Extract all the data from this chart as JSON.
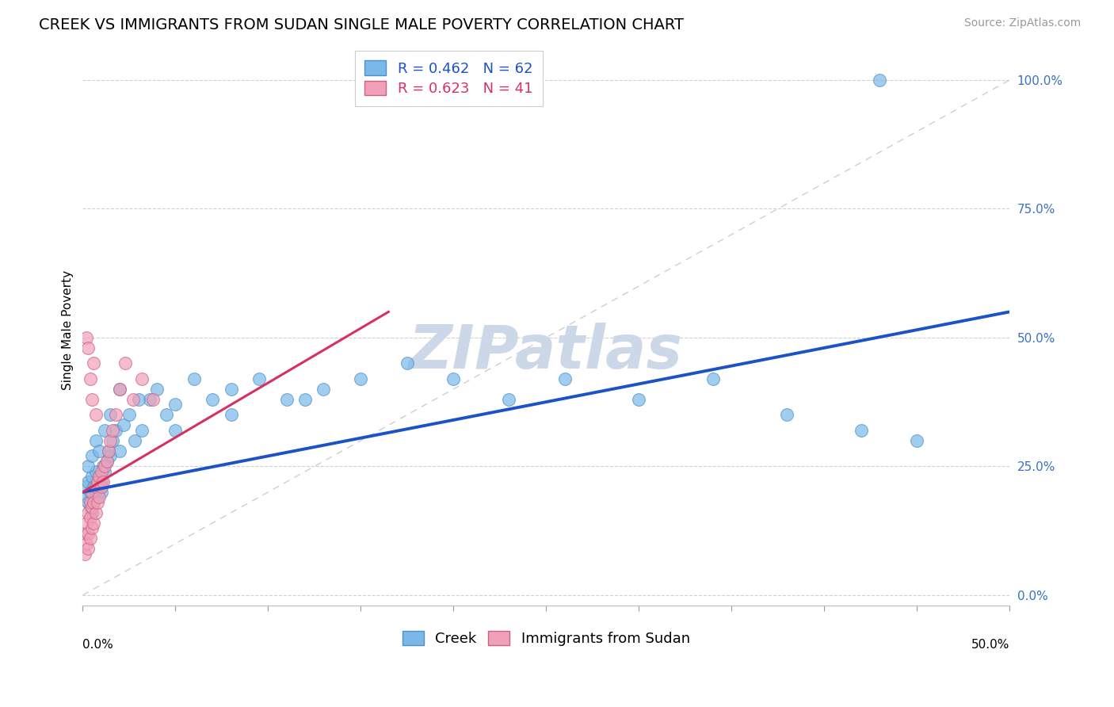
{
  "title": "CREEK VS IMMIGRANTS FROM SUDAN SINGLE MALE POVERTY CORRELATION CHART",
  "source_text": "Source: ZipAtlas.com",
  "ylabel": "Single Male Poverty",
  "watermark": "ZIPatlas",
  "watermark_color": "#ccd8e8",
  "creek_color": "#7ab8e8",
  "creek_edge": "#5090c8",
  "sudan_color": "#f0a0b8",
  "sudan_edge": "#d06080",
  "blue_line_color": "#1a52c8",
  "pink_line_color": "#d83060",
  "diag_line_color": "#c8c8d0",
  "background_color": "#ffffff",
  "legend_label_creek": "R = 0.462   N = 62",
  "legend_label_sudan": "R = 0.623   N = 41",
  "legend_color_creek": "#1a52c8",
  "legend_color_sudan": "#d83060",
  "creek_x": [
    0.001,
    0.002,
    0.003,
    0.003,
    0.004,
    0.004,
    0.005,
    0.005,
    0.006,
    0.006,
    0.007,
    0.007,
    0.008,
    0.008,
    0.009,
    0.009,
    0.01,
    0.01,
    0.011,
    0.012,
    0.013,
    0.014,
    0.015,
    0.016,
    0.018,
    0.02,
    0.022,
    0.025,
    0.028,
    0.032,
    0.036,
    0.04,
    0.045,
    0.05,
    0.06,
    0.07,
    0.08,
    0.095,
    0.11,
    0.13,
    0.15,
    0.175,
    0.2,
    0.23,
    0.26,
    0.3,
    0.34,
    0.38,
    0.42,
    0.45,
    0.003,
    0.005,
    0.007,
    0.009,
    0.012,
    0.015,
    0.02,
    0.03,
    0.05,
    0.08,
    0.12,
    0.43
  ],
  "creek_y": [
    0.21,
    0.19,
    0.18,
    0.22,
    0.2,
    0.17,
    0.16,
    0.23,
    0.21,
    0.18,
    0.24,
    0.2,
    0.22,
    0.19,
    0.21,
    0.23,
    0.22,
    0.2,
    0.25,
    0.24,
    0.26,
    0.28,
    0.27,
    0.3,
    0.32,
    0.28,
    0.33,
    0.35,
    0.3,
    0.32,
    0.38,
    0.4,
    0.35,
    0.37,
    0.42,
    0.38,
    0.4,
    0.42,
    0.38,
    0.4,
    0.42,
    0.45,
    0.42,
    0.38,
    0.42,
    0.38,
    0.42,
    0.35,
    0.32,
    0.3,
    0.25,
    0.27,
    0.3,
    0.28,
    0.32,
    0.35,
    0.4,
    0.38,
    0.32,
    0.35,
    0.38,
    1.0
  ],
  "sudan_x": [
    0.001,
    0.001,
    0.002,
    0.002,
    0.003,
    0.003,
    0.003,
    0.004,
    0.004,
    0.004,
    0.005,
    0.005,
    0.005,
    0.006,
    0.006,
    0.007,
    0.007,
    0.008,
    0.008,
    0.009,
    0.009,
    0.01,
    0.01,
    0.011,
    0.012,
    0.013,
    0.014,
    0.015,
    0.016,
    0.018,
    0.02,
    0.023,
    0.027,
    0.032,
    0.038,
    0.002,
    0.003,
    0.004,
    0.005,
    0.006,
    0.007
  ],
  "sudan_y": [
    0.12,
    0.08,
    0.1,
    0.14,
    0.09,
    0.12,
    0.16,
    0.11,
    0.15,
    0.18,
    0.13,
    0.17,
    0.2,
    0.14,
    0.18,
    0.16,
    0.21,
    0.18,
    0.22,
    0.19,
    0.23,
    0.21,
    0.24,
    0.22,
    0.25,
    0.26,
    0.28,
    0.3,
    0.32,
    0.35,
    0.4,
    0.45,
    0.38,
    0.42,
    0.38,
    0.5,
    0.48,
    0.42,
    0.38,
    0.45,
    0.35
  ],
  "xlim": [
    0.0,
    0.5
  ],
  "ylim": [
    -0.02,
    1.05
  ],
  "x_ticks": [
    0.0,
    0.05,
    0.1,
    0.15,
    0.2,
    0.25,
    0.3,
    0.35,
    0.4,
    0.45,
    0.5
  ],
  "y_ticks": [
    0.0,
    0.25,
    0.5,
    0.75,
    1.0
  ],
  "blue_line_x": [
    0.0,
    0.5
  ],
  "blue_line_y": [
    0.2,
    0.55
  ],
  "pink_line_x": [
    0.0,
    0.165
  ],
  "pink_line_y": [
    0.2,
    0.55
  ],
  "diag_line_x": [
    0.0,
    0.5
  ],
  "diag_line_y": [
    0.0,
    1.0
  ],
  "title_fontsize": 14,
  "source_fontsize": 10,
  "axis_label_fontsize": 11,
  "tick_fontsize": 11,
  "legend_fontsize": 13,
  "watermark_fontsize": 55
}
